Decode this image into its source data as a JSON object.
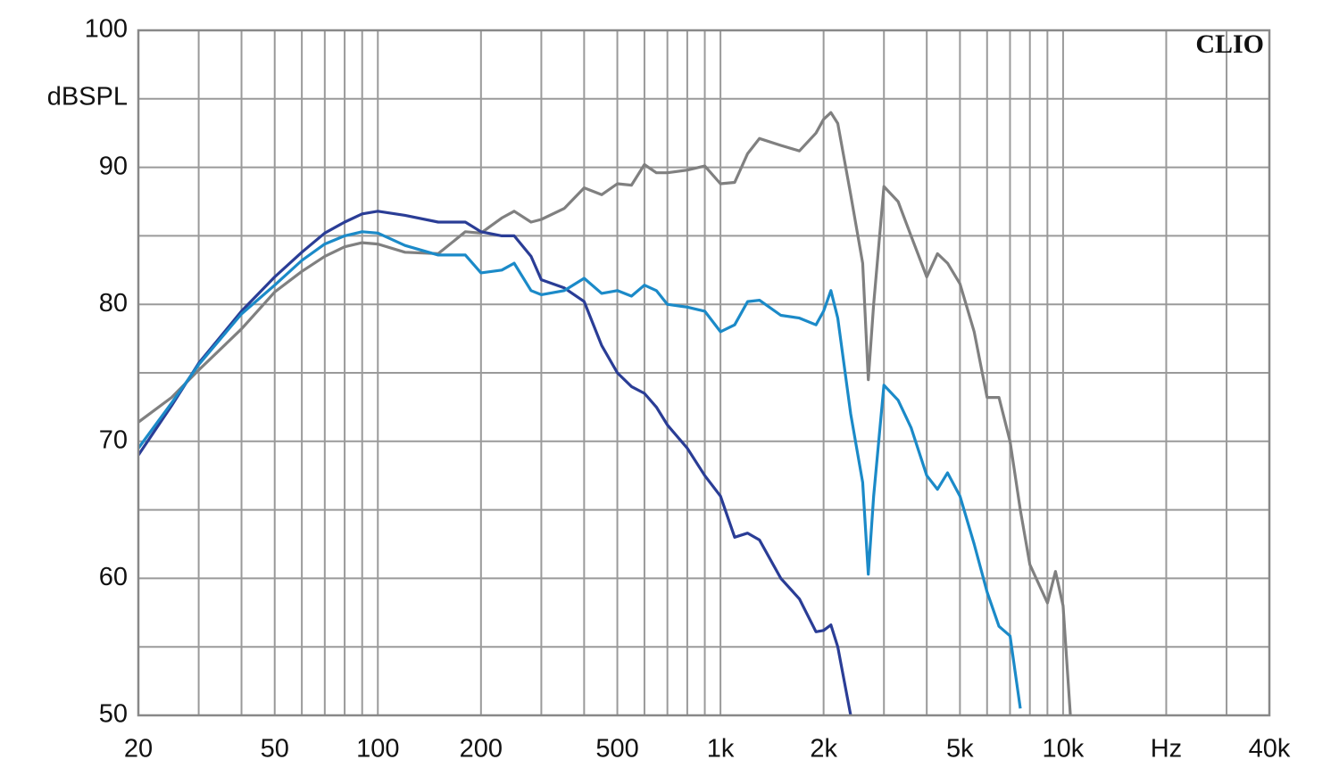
{
  "chart_data": {
    "type": "line",
    "y_label": "dBSPL",
    "watermark": "CLIO",
    "log_x": true,
    "grid": true,
    "xlim": [
      20,
      40000
    ],
    "xticks": [
      20,
      50,
      100,
      200,
      500,
      {
        "value": 1000,
        "label": "1k"
      },
      {
        "value": 2000,
        "label": "2k"
      },
      {
        "value": 5000,
        "label": "5k"
      },
      {
        "value": 10000,
        "label": "10k"
      },
      {
        "value": 20000,
        "label": "Hz"
      },
      {
        "value": 40000,
        "label": "40k"
      }
    ],
    "xminor": [
      30,
      40,
      60,
      70,
      80,
      90,
      300,
      400,
      600,
      700,
      800,
      900,
      3000,
      4000,
      6000,
      7000,
      8000,
      9000,
      30000
    ],
    "ylim": [
      50,
      100
    ],
    "yticks": [
      50,
      60,
      70,
      80,
      90,
      100
    ],
    "yminor": [
      55,
      65,
      75,
      85,
      95
    ],
    "x": [
      20,
      25,
      30,
      40,
      50,
      60,
      70,
      80,
      90,
      100,
      120,
      150,
      180,
      200,
      230,
      250,
      280,
      300,
      350,
      400,
      450,
      500,
      550,
      600,
      650,
      700,
      800,
      900,
      1000,
      1100,
      1200,
      1300,
      1500,
      1700,
      1900,
      2000,
      2100,
      2200,
      2400,
      2600,
      2700,
      2800,
      3000,
      3300,
      3600,
      4000,
      4300,
      4600,
      5000,
      5500,
      6000,
      6500,
      7000,
      7500,
      8000,
      9000,
      9500,
      10000,
      10500
    ],
    "series": [
      {
        "color": "#808080",
        "values": [
          71.4,
          73.2,
          75.2,
          78.2,
          80.9,
          82.4,
          83.5,
          84.2,
          84.5,
          84.4,
          83.8,
          83.7,
          85.3,
          85.2,
          86.3,
          86.8,
          86.0,
          86.2,
          87.0,
          88.5,
          88.0,
          88.8,
          88.7,
          90.2,
          89.6,
          89.6,
          89.8,
          90.1,
          88.8,
          88.9,
          91.0,
          92.1,
          91.6,
          91.2,
          92.5,
          93.5,
          94.0,
          93.2,
          88.0,
          83.0,
          74.5,
          80.0,
          88.6,
          87.5,
          85.0,
          82.0,
          83.7,
          83.0,
          81.5,
          78.0,
          73.2,
          73.2,
          70.0,
          65.0,
          61.0,
          58.2,
          60.5,
          58.0,
          50.0
        ]
      },
      {
        "color": "#2a3d96",
        "values": [
          69.0,
          72.6,
          75.7,
          79.5,
          82.0,
          83.8,
          85.2,
          86.0,
          86.6,
          86.8,
          86.5,
          86.0,
          86.0,
          85.3,
          85.0,
          85.0,
          83.5,
          81.8,
          81.2,
          80.2,
          77.0,
          75.0,
          74.0,
          73.5,
          72.5,
          71.2,
          69.5,
          67.5,
          66.0,
          63.0,
          63.3,
          62.8,
          60.0,
          58.5,
          56.1,
          56.2,
          56.6,
          55.0,
          50.0,
          null,
          null,
          null,
          null,
          null,
          null,
          null,
          null,
          null,
          null,
          null,
          null,
          null,
          null,
          null,
          null,
          null,
          null,
          null,
          null
        ]
      },
      {
        "color": "#1b8ac8",
        "values": [
          69.5,
          72.8,
          75.6,
          79.3,
          81.4,
          83.2,
          84.4,
          85.0,
          85.3,
          85.2,
          84.3,
          83.6,
          83.6,
          82.3,
          82.5,
          83.0,
          81.0,
          80.7,
          81.0,
          81.9,
          80.8,
          81.0,
          80.6,
          81.4,
          81.0,
          80.0,
          79.8,
          79.5,
          78.0,
          78.5,
          80.2,
          80.3,
          79.2,
          79.0,
          78.5,
          79.5,
          81.0,
          79.0,
          72.0,
          67.0,
          60.3,
          66.0,
          74.1,
          73.0,
          71.0,
          67.5,
          66.5,
          67.7,
          66.0,
          62.5,
          59.0,
          56.5,
          55.8,
          50.5,
          null,
          null,
          null,
          null,
          null
        ]
      }
    ]
  }
}
